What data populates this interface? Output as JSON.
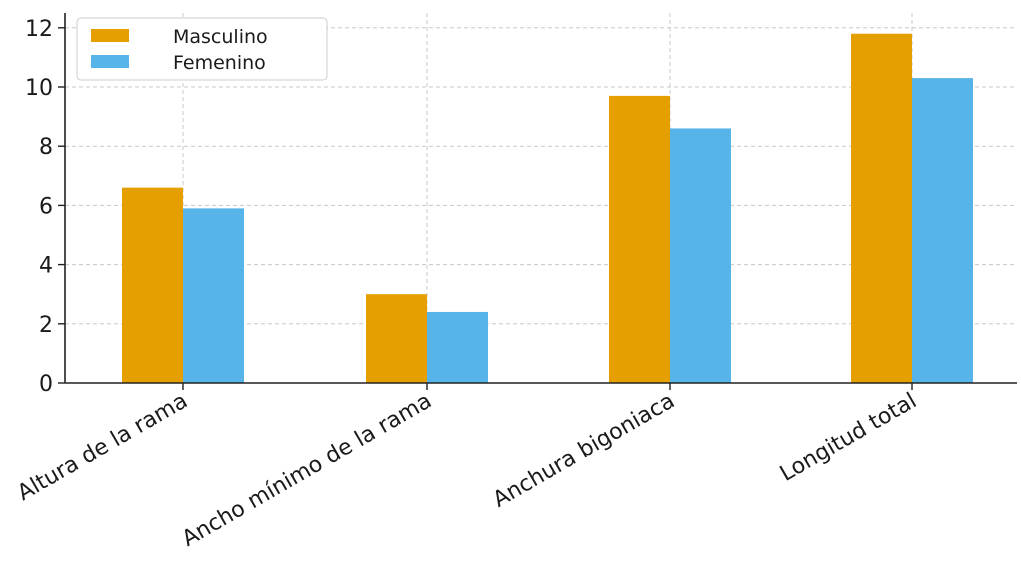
{
  "chart_data": {
    "type": "bar",
    "categories": [
      "Altura de la rama",
      "Ancho mínimo de la rama",
      "Anchura bigoniaca",
      "Longitud total"
    ],
    "series": [
      {
        "name": "Masculino",
        "values": [
          6.6,
          3.0,
          9.7,
          11.8
        ],
        "color": "#E69F00"
      },
      {
        "name": "Femenino",
        "values": [
          5.9,
          2.4,
          8.6,
          10.3
        ],
        "color": "#56B4E9"
      }
    ],
    "yticks": [
      "0",
      "2",
      "4",
      "6",
      "8",
      "10",
      "12"
    ],
    "ylim": [
      0,
      12.5
    ],
    "grid": true,
    "legend_position": "top-left"
  }
}
